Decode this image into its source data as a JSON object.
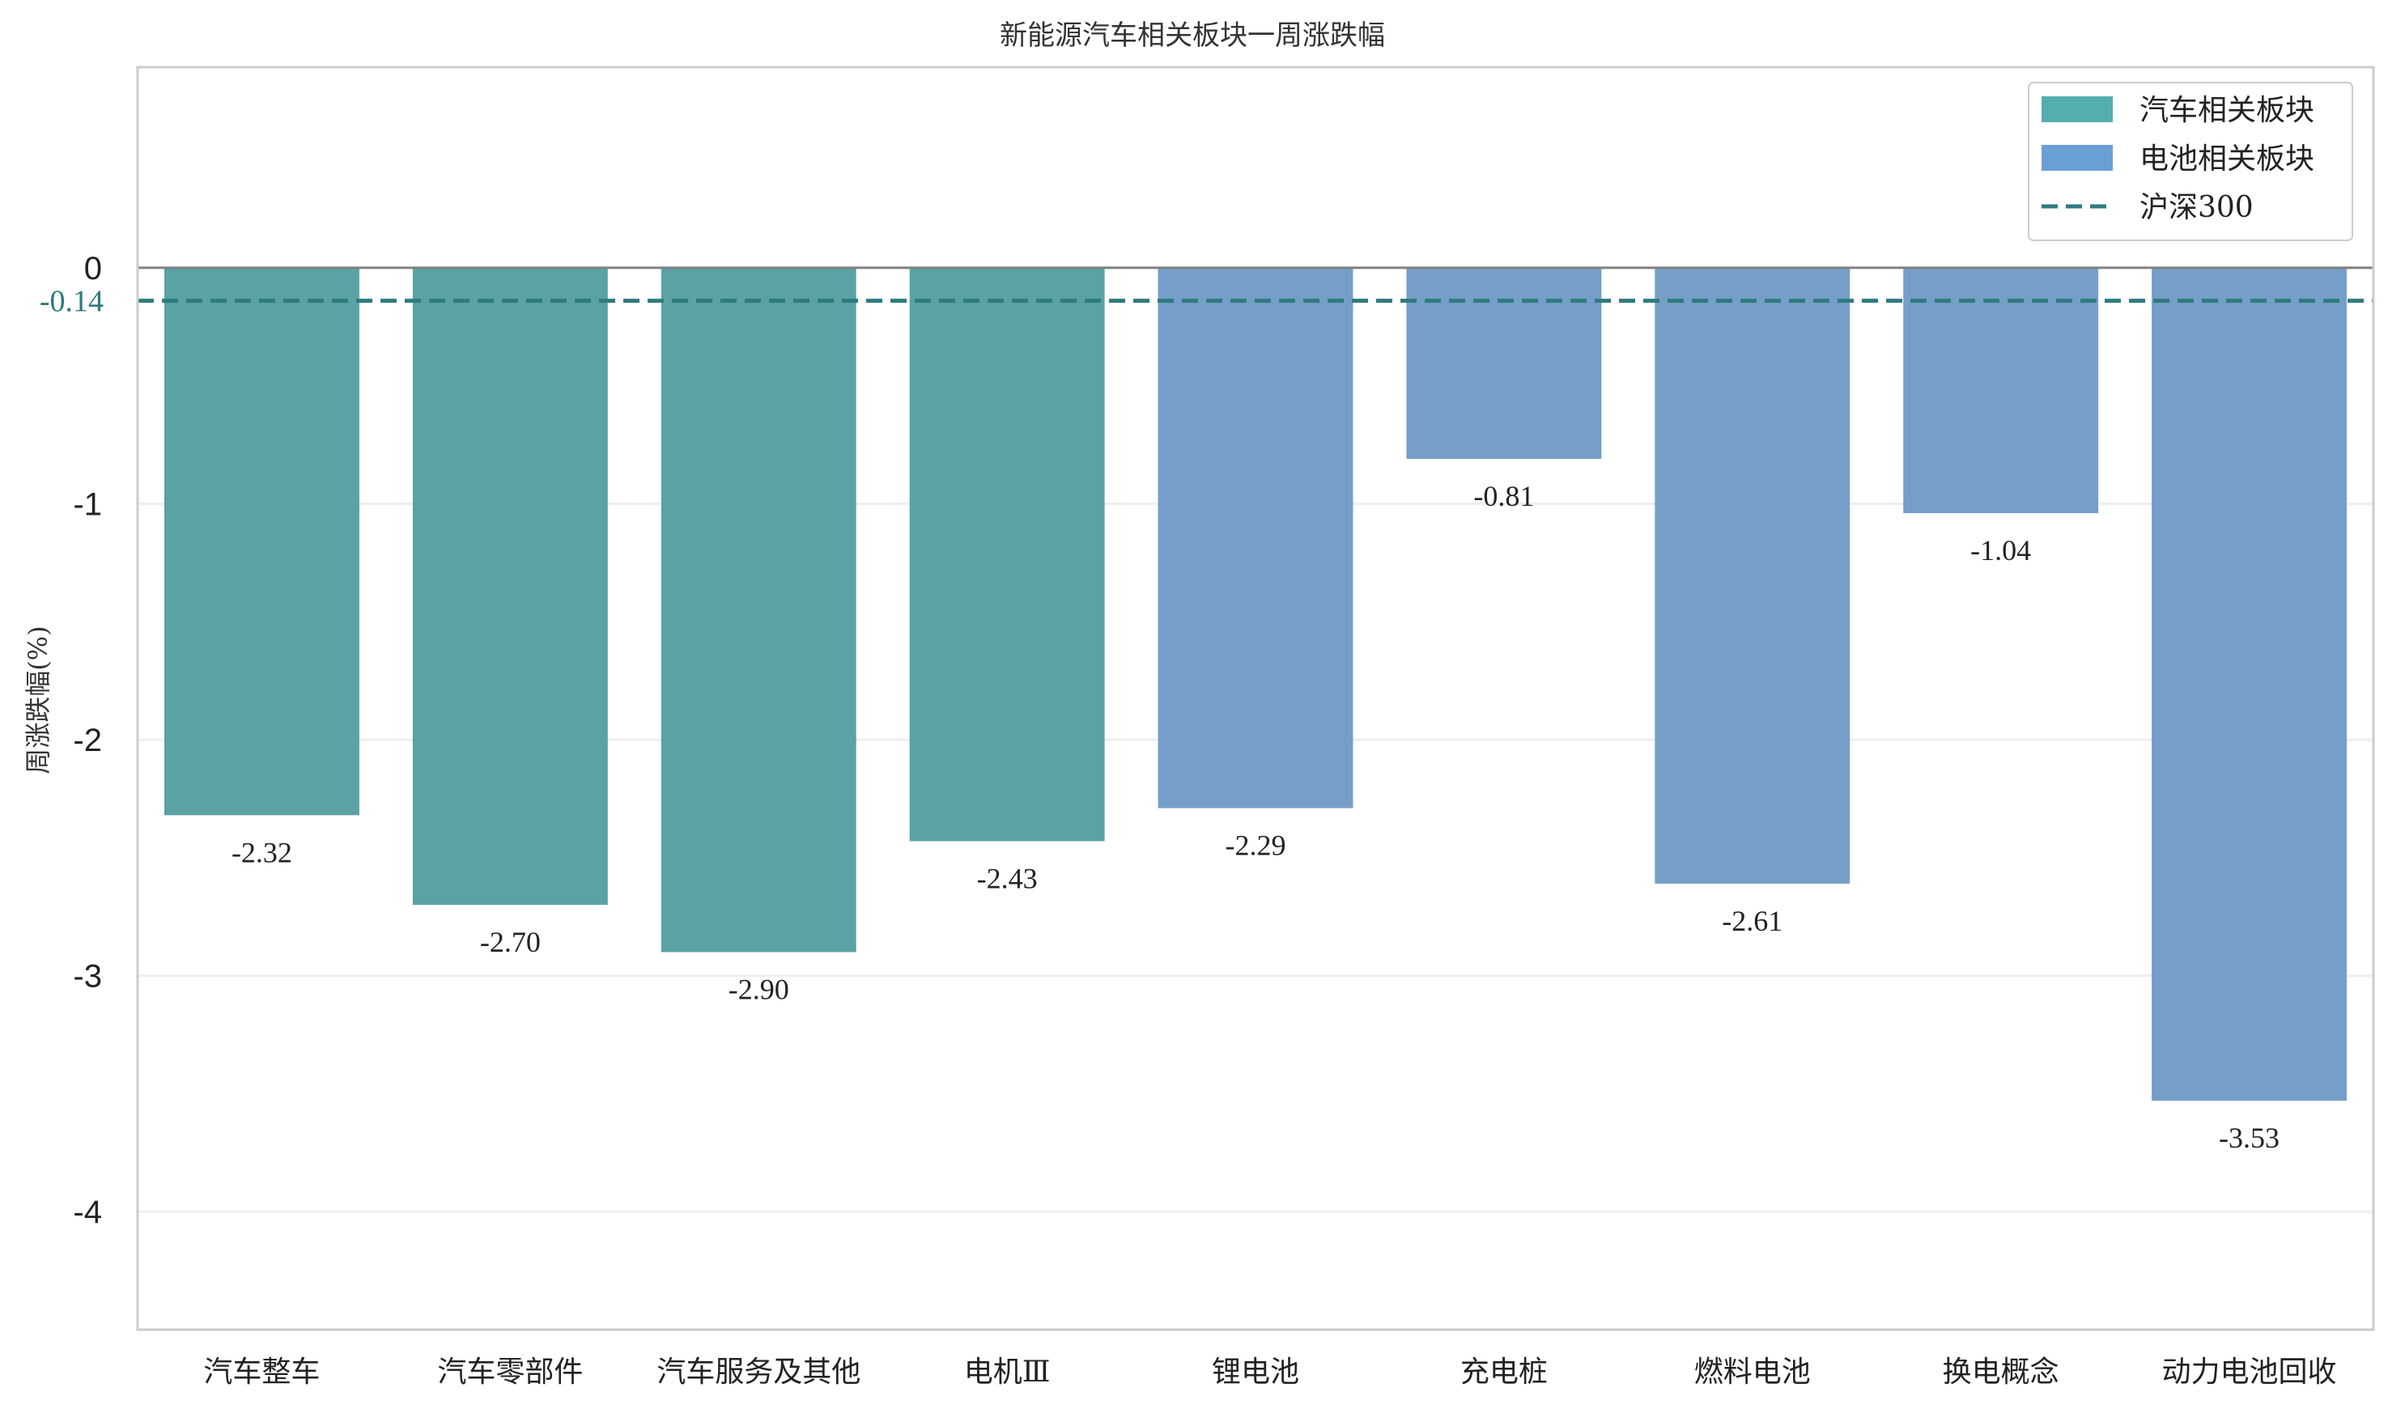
{
  "chart_data": {
    "type": "bar",
    "title": "新能源汽车相关板块一周涨跌幅",
    "ylabel": "周涨跌幅(%)",
    "xlabel": "",
    "ylim": [
      -4.5,
      0.85
    ],
    "yticks": [
      0,
      -1,
      -2,
      -3,
      -4
    ],
    "grid": true,
    "legend_position": "top-right",
    "categories": [
      "汽车整车",
      "汽车零部件",
      "汽车服务及其他",
      "电机Ⅲ",
      "锂电池",
      "充电桩",
      "燃料电池",
      "换电概念",
      "动力电池回收"
    ],
    "values": [
      -2.32,
      -2.7,
      -2.9,
      -2.43,
      -2.29,
      -0.81,
      -2.61,
      -1.04,
      -3.53
    ],
    "value_labels": [
      "-2.32",
      "-2.70",
      "-2.90",
      "-2.43",
      "-2.29",
      "-0.81",
      "-2.61",
      "-1.04",
      "-3.53"
    ],
    "groups": [
      "auto",
      "auto",
      "auto",
      "auto",
      "battery",
      "battery",
      "battery",
      "battery",
      "battery"
    ],
    "series": [
      {
        "key": "auto",
        "name": "汽车相关板块",
        "color": "#5aa2a3"
      },
      {
        "key": "battery",
        "name": "电池相关板块",
        "color": "#759fc8"
      }
    ],
    "legend_swatch_colors": {
      "auto": "#53aeac",
      "battery": "#6a9fd6"
    },
    "reference_line": {
      "name": "沪深300",
      "value": -0.14,
      "label": "-0.14",
      "color": "#2e7b7d"
    }
  }
}
